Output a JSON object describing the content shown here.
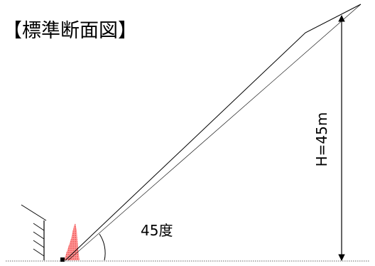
{
  "diagram": {
    "title": "【標準断面図】",
    "angle_label": "45度",
    "height_label": "H=45m"
  },
  "colors": {
    "line": "#000000",
    "hatch_fill": "#ff9999",
    "hatch_dots": "#e02020",
    "ground_dots": "#555555"
  }
}
